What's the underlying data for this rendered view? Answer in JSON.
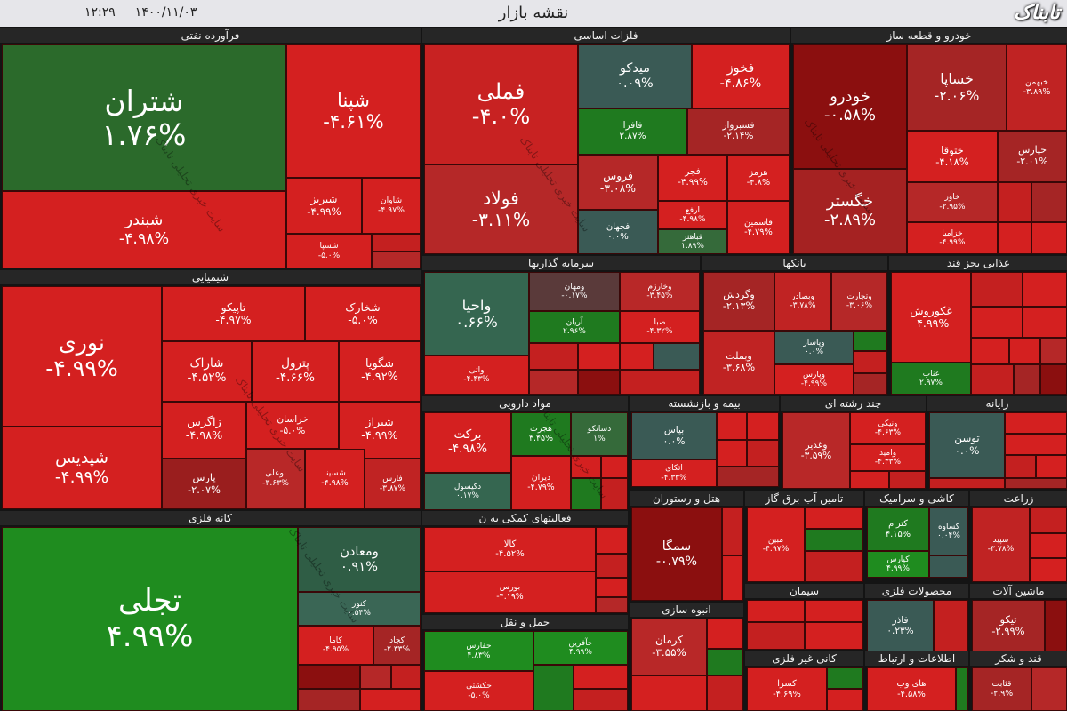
{
  "header": {
    "title": "نقشه بازار",
    "date": "۱۴۰۰/۱۱/۰۳",
    "time": "۱۲:۲۹",
    "logo": "تابناک"
  },
  "watermark": "سایت خبری تحلیلی تابناک",
  "sectors": [
    {
      "name": "فرآورده نفتی",
      "tiles": [
        {
          "name": "شتران",
          "change": "۱.۷۶%",
          "color": "#2b6a2b"
        },
        {
          "name": "شبندر",
          "change": "-۴.۹۸%",
          "color": "#d42020"
        },
        {
          "name": "شپنا",
          "change": "-۴.۶۱%",
          "color": "#d42020"
        },
        {
          "name": "شبریز",
          "change": "-۴.۹۹%",
          "color": "#d42020"
        },
        {
          "name": "شاوان",
          "change": "-۴.۹۷%",
          "color": "#d42020"
        },
        {
          "name": "شسپا",
          "change": "-۵.۰%",
          "color": "#d42020"
        }
      ]
    },
    {
      "name": "شیمیایی",
      "tiles": [
        {
          "name": "نوری",
          "change": "-۴.۹۹%",
          "color": "#d42020"
        },
        {
          "name": "شپدیس",
          "change": "-۴.۹۹%",
          "color": "#d42020"
        },
        {
          "name": "تاپیکو",
          "change": "-۴.۹۷%",
          "color": "#d42020"
        },
        {
          "name": "شخارک",
          "change": "-۵.۰%",
          "color": "#d42020"
        },
        {
          "name": "شاراک",
          "change": "-۴.۵۲%",
          "color": "#d42020"
        },
        {
          "name": "پترول",
          "change": "-۴.۶۶%",
          "color": "#d42020"
        },
        {
          "name": "شگویا",
          "change": "-۴.۹۲%",
          "color": "#d42020"
        },
        {
          "name": "زاگرس",
          "change": "-۴.۹۸%",
          "color": "#d42020"
        },
        {
          "name": "خراسان",
          "change": "-۵.۰%",
          "color": "#d42020"
        },
        {
          "name": "شیراز",
          "change": "-۴.۹۹%",
          "color": "#d42020"
        },
        {
          "name": "پارس",
          "change": "-۲.۰۷%",
          "color": "#9a1e1e"
        },
        {
          "name": "بوعلی",
          "change": "-۳.۶۳%",
          "color": "#b82828"
        },
        {
          "name": "شسینا",
          "change": "-۴.۹۸%",
          "color": "#d42020"
        },
        {
          "name": "فارس",
          "change": "-۳.۸۷%",
          "color": "#c02323"
        }
      ]
    },
    {
      "name": "کانه فلزی",
      "tiles": [
        {
          "name": "تجلی",
          "change": "۴.۹۹%",
          "color": "#1f8c1f"
        },
        {
          "name": "ومعادن",
          "change": "۰.۹۱%",
          "color": "#2f5d45"
        },
        {
          "name": "کنور",
          "change": "۰.۵۴%",
          "color": "#3a6655"
        },
        {
          "name": "کاما",
          "change": "-۴.۹۵%",
          "color": "#d42020"
        },
        {
          "name": "کچاد",
          "change": "-۲.۳۳%",
          "color": "#a52525"
        }
      ]
    },
    {
      "name": "فلزات اساسی",
      "tiles": [
        {
          "name": "فملی",
          "change": "-۴.۰%",
          "color": "#c82222"
        },
        {
          "name": "فولاد",
          "change": "-۳.۱۱%",
          "color": "#b52828"
        },
        {
          "name": "میدکو",
          "change": "۰.۰۹%",
          "color": "#3a5a55"
        },
        {
          "name": "فخوز",
          "change": "-۴.۸۶%",
          "color": "#d42020"
        },
        {
          "name": "فافزا",
          "change": "۲.۸۷%",
          "color": "#1f7a1f"
        },
        {
          "name": "فسبزوار",
          "change": "-۲.۱۴%",
          "color": "#a52525"
        },
        {
          "name": "فروس",
          "change": "-۳.۰۸%",
          "color": "#b52828"
        },
        {
          "name": "فجر",
          "change": "-۴.۹۹%",
          "color": "#d42020"
        },
        {
          "name": "هرمز",
          "change": "-۴.۸%",
          "color": "#d42020"
        },
        {
          "name": "فجهان",
          "change": "۰.۰%",
          "color": "#3a5a55"
        },
        {
          "name": "ارفع",
          "change": "-۴.۹۸%",
          "color": "#d42020"
        },
        {
          "name": "فاسمین",
          "change": "-۴.۷۹%",
          "color": "#d42020"
        },
        {
          "name": "فباهنر",
          "change": "۱.۸۹%",
          "color": "#356a3a"
        }
      ]
    },
    {
      "name": "سرمایه گذاریها",
      "tiles": [
        {
          "name": "واحیا",
          "change": "۰.۶۶%",
          "color": "#356650"
        },
        {
          "name": "واتی",
          "change": "-۴.۴۳%",
          "color": "#d42020"
        },
        {
          "name": "ومهان",
          "change": "-۰.۱۷%",
          "color": "#5a3a3a"
        },
        {
          "name": "وخارزم",
          "change": "-۳.۴۵%",
          "color": "#b82828"
        },
        {
          "name": "آریان",
          "change": "۲.۹۶%",
          "color": "#1f7a1f"
        },
        {
          "name": "صبا",
          "change": "-۴.۳۲%",
          "color": "#d42020"
        }
      ]
    },
    {
      "name": "بانکها",
      "tiles": [
        {
          "name": "وگردش",
          "change": "-۲.۱۳%",
          "color": "#a52525"
        },
        {
          "name": "وبصادر",
          "change": "-۳.۷۸%",
          "color": "#c02323"
        },
        {
          "name": "وتجارت",
          "change": "-۳.۰۶%",
          "color": "#b52828"
        },
        {
          "name": "وبملت",
          "change": "-۳.۶۸%",
          "color": "#c02323"
        },
        {
          "name": "وپاسار",
          "change": "۰.۰%",
          "color": "#3a5a55"
        },
        {
          "name": "وپارس",
          "change": "-۴.۹۹%",
          "color": "#d42020"
        }
      ]
    },
    {
      "name": "غذایی بجز قند",
      "tiles": [
        {
          "name": "غکوروش",
          "change": "-۴.۹۹%",
          "color": "#d42020"
        },
        {
          "name": "غناب",
          "change": "۲.۹۷%",
          "color": "#1f7a1f"
        }
      ]
    },
    {
      "name": "خودرو و قطعه ساز",
      "tiles": [
        {
          "name": "خودرو",
          "change": "-۰.۵۸%",
          "color": "#8b0f0f"
        },
        {
          "name": "خگستر",
          "change": "-۲.۸۹%",
          "color": "#a52222"
        },
        {
          "name": "خساپا",
          "change": "-۲.۰۶%",
          "color": "#a52525"
        },
        {
          "name": "خبهمن",
          "change": "-۳.۸۹%",
          "color": "#c02323"
        },
        {
          "name": "ختوقا",
          "change": "-۴.۱۸%",
          "color": "#d42020"
        },
        {
          "name": "خپارس",
          "change": "-۲.۰۱%",
          "color": "#a52525"
        },
        {
          "name": "خاور",
          "change": "-۲.۹۵%",
          "color": "#b52828"
        },
        {
          "name": "خزامیا",
          "change": "-۴.۹۹%",
          "color": "#d42020"
        }
      ]
    },
    {
      "name": "مواد دارویی",
      "tiles": [
        {
          "name": "برکت",
          "change": "-۴.۹۸%",
          "color": "#d42020"
        },
        {
          "name": "دکیسول",
          "change": "۰.۱۷%",
          "color": "#356650"
        },
        {
          "name": "هجرت",
          "change": "۳.۴۵%",
          "color": "#1f7a1f"
        },
        {
          "name": "دسانکو",
          "change": "۱%",
          "color": "#356a3a"
        },
        {
          "name": "دیران",
          "change": "-۴.۷۹%",
          "color": "#d42020"
        }
      ]
    },
    {
      "name": "بیمه و بازنشسته",
      "tiles": [
        {
          "name": "بپاس",
          "change": "۰.۰%",
          "color": "#3a5a55"
        },
        {
          "name": "اتکای",
          "change": "-۴.۳۳%",
          "color": "#d42020"
        }
      ]
    },
    {
      "name": "چند رشته ای",
      "tiles": [
        {
          "name": "وغدیر",
          "change": "-۳.۵۹%",
          "color": "#b82828"
        },
        {
          "name": "ونیکی",
          "change": "-۴.۶۳%",
          "color": "#d42020"
        },
        {
          "name": "وامید",
          "change": "-۴.۳۳%",
          "color": "#d42020"
        }
      ]
    },
    {
      "name": "رایانه",
      "tiles": [
        {
          "name": "توسن",
          "change": "۰.۰%",
          "color": "#3a5a55"
        }
      ]
    },
    {
      "name": "فعالیتهای کمکی به ن",
      "tiles": [
        {
          "name": "کالا",
          "change": "-۴.۵۲%",
          "color": "#d42020"
        },
        {
          "name": "بورس",
          "change": "-۴.۱۹%",
          "color": "#d42020"
        }
      ]
    },
    {
      "name": "حمل و نقل",
      "tiles": [
        {
          "name": "حفارس",
          "change": "۴.۸۳%",
          "color": "#1f8c1f"
        },
        {
          "name": "حکشتی",
          "change": "-۵.۰%",
          "color": "#d42020"
        },
        {
          "name": "حآفرین",
          "change": "۴.۹۹%",
          "color": "#1f8c1f"
        }
      ]
    },
    {
      "name": "هتل و رستوران",
      "tiles": [
        {
          "name": "سمگا",
          "change": "-۰.۷۹%",
          "color": "#8b0f0f"
        }
      ]
    },
    {
      "name": "انبوه سازی",
      "tiles": [
        {
          "name": "کرمان",
          "change": "-۳.۵۵%",
          "color": "#b82828"
        }
      ]
    },
    {
      "name": "تامین آب-برق-گاز",
      "tiles": [
        {
          "name": "مبین",
          "change": "-۴.۹۷%",
          "color": "#d42020"
        }
      ]
    },
    {
      "name": "سیمان",
      "tiles": []
    },
    {
      "name": "کانی غیر فلزی",
      "tiles": [
        {
          "name": "کسرا",
          "change": "-۴.۶۹%",
          "color": "#d42020"
        }
      ]
    },
    {
      "name": "کاشی و سرامیک",
      "tiles": [
        {
          "name": "کترام",
          "change": "۴.۱۵%",
          "color": "#1f7a1f"
        },
        {
          "name": "کپارس",
          "change": "۴.۹۹%",
          "color": "#1f8c1f"
        },
        {
          "name": "کساوه",
          "change": "۰.۰۴%",
          "color": "#3a5a55"
        }
      ]
    },
    {
      "name": "محصولات فلزی",
      "tiles": [
        {
          "name": "فاذر",
          "change": "۰.۲۳%",
          "color": "#3a5a55"
        }
      ]
    },
    {
      "name": "اطلاعات و ارتباط",
      "tiles": [
        {
          "name": "های وب",
          "change": "-۴.۵۸%",
          "color": "#d42020"
        }
      ]
    },
    {
      "name": "زراعت",
      "tiles": [
        {
          "name": "سپید",
          "change": "-۳.۷۸%",
          "color": "#c02323"
        }
      ]
    },
    {
      "name": "ماشین آلات",
      "tiles": [
        {
          "name": "تیکو",
          "change": "-۲.۹۹%",
          "color": "#a52525"
        }
      ]
    },
    {
      "name": "قند و شکر",
      "tiles": [
        {
          "name": "قثابت",
          "change": "-۲.۹%",
          "color": "#a52525"
        }
      ]
    }
  ]
}
